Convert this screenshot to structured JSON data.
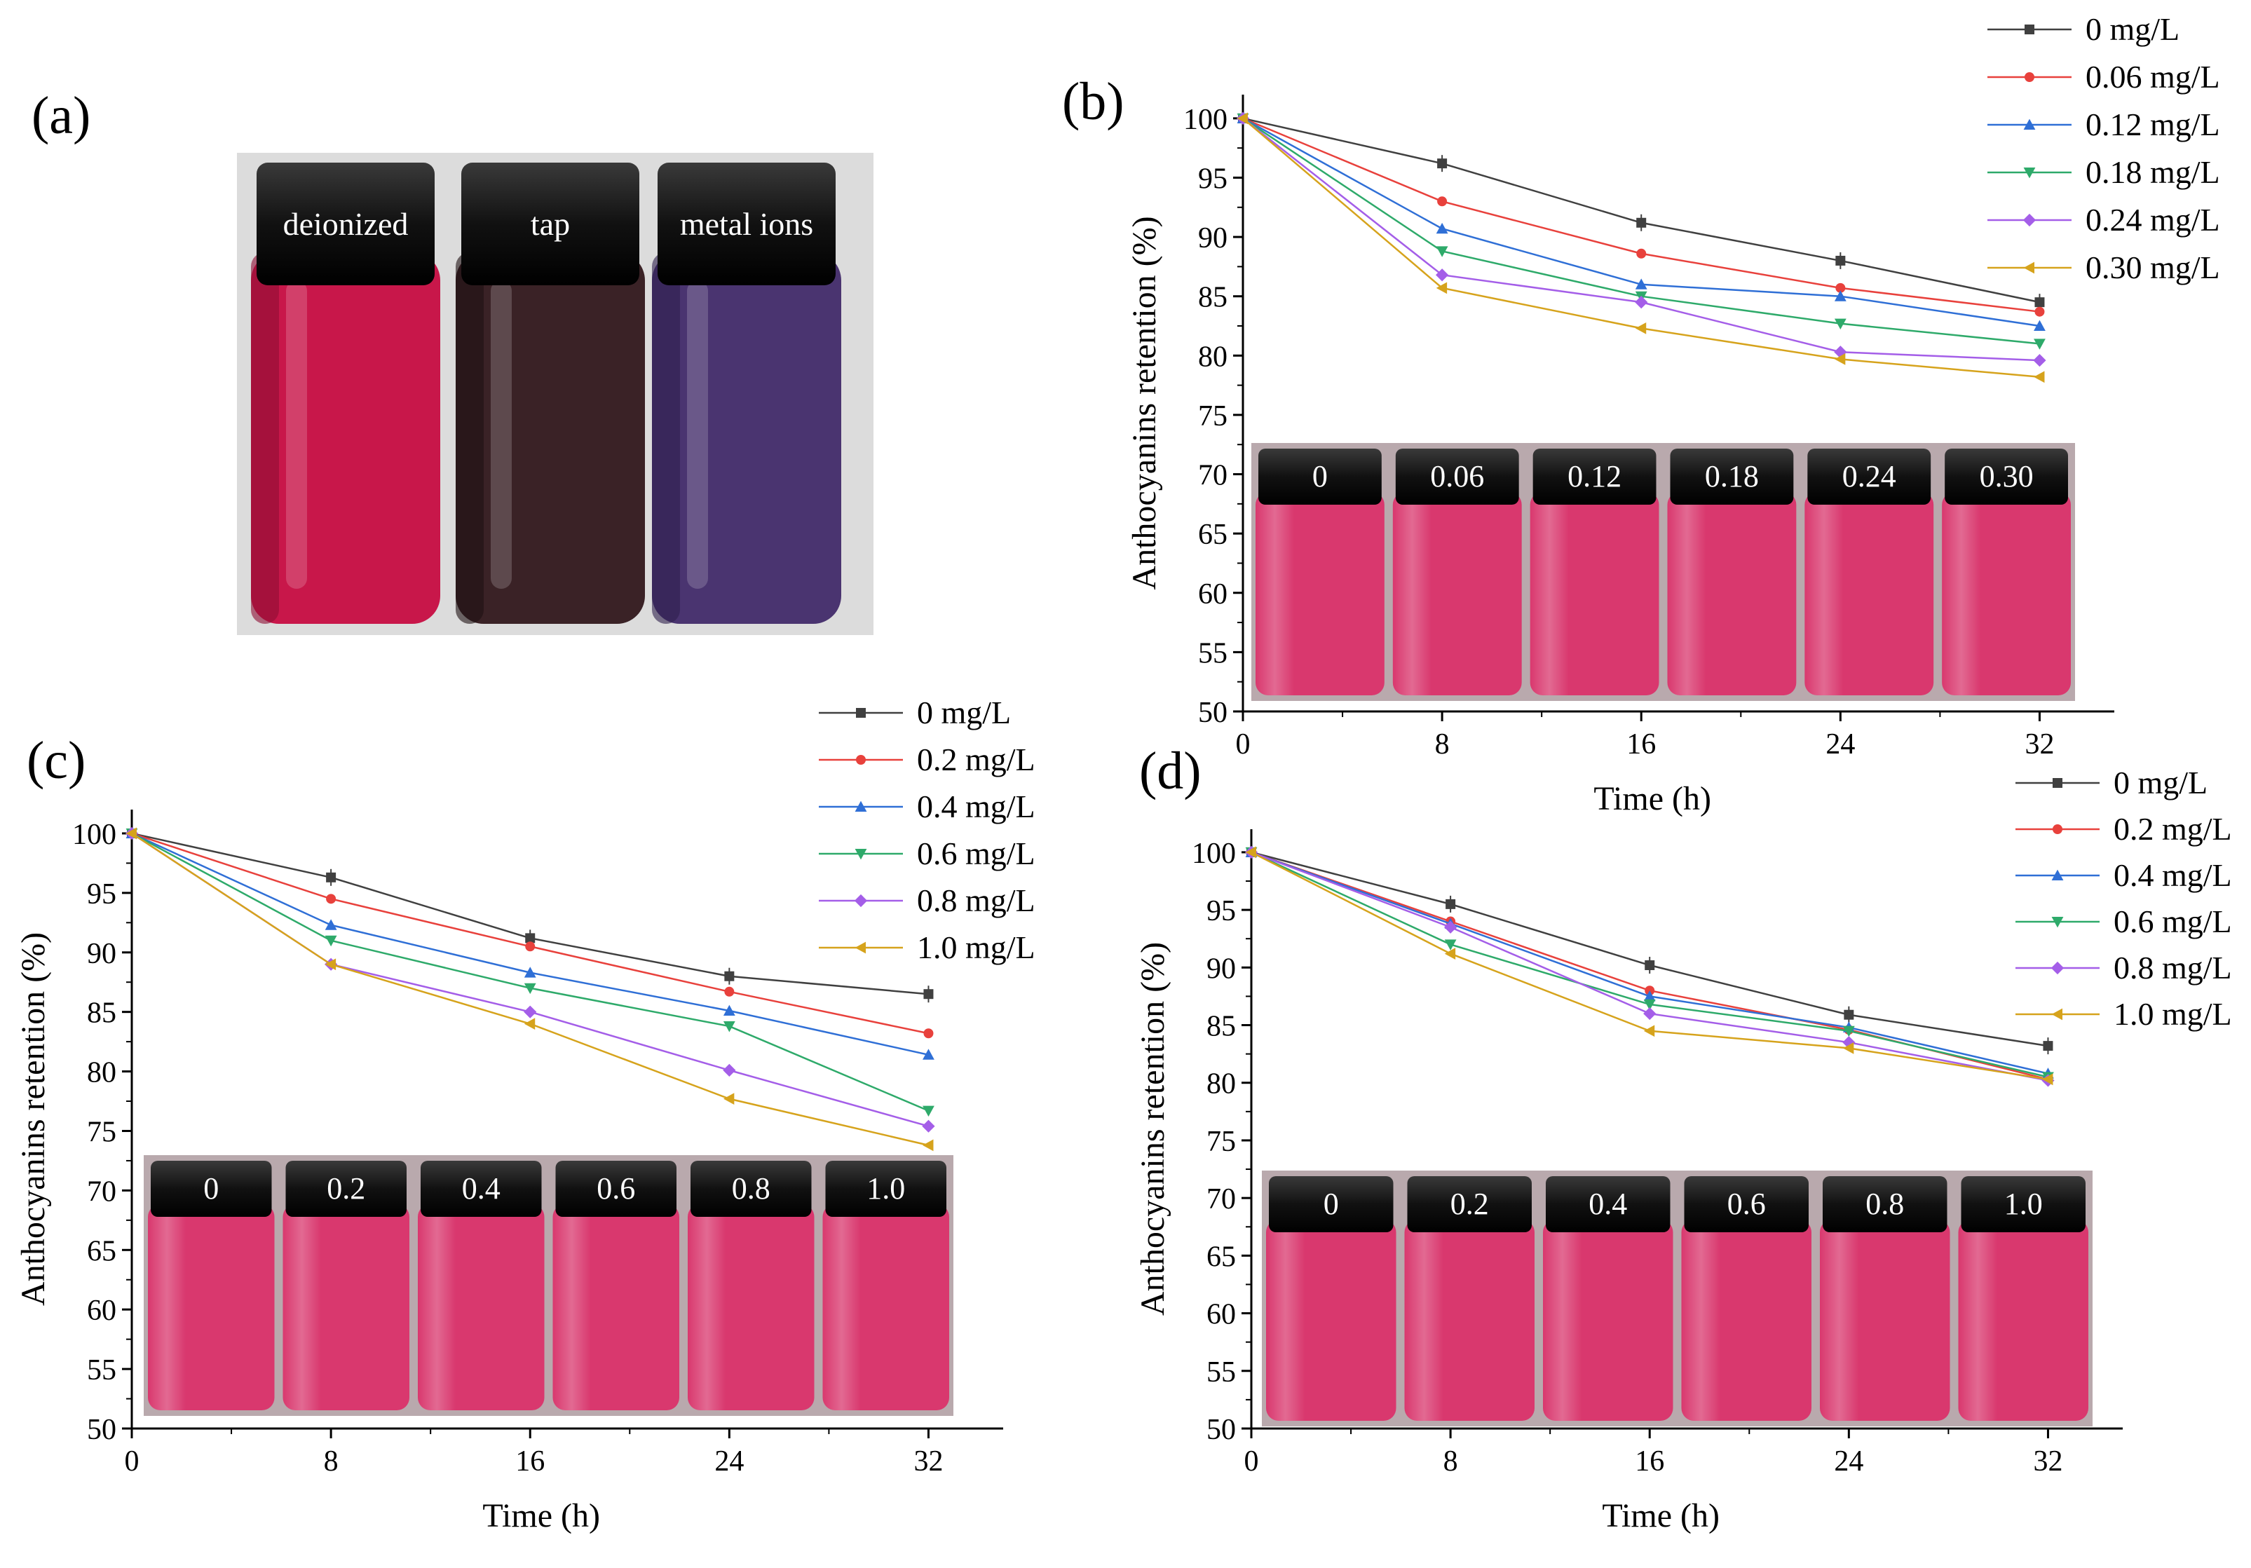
{
  "panel_a": {
    "letter": "(a)",
    "vials": [
      {
        "label": "deionized",
        "liquid": "#c8174a",
        "liquid_dark": "#8e0d33"
      },
      {
        "label": "tap",
        "liquid": "#3a2226",
        "liquid_dark": "#1e1012"
      },
      {
        "label": "metal ions",
        "liquid": "#4a3470",
        "liquid_dark": "#2e1f4c"
      }
    ]
  },
  "chart_data": [
    {
      "panel": "(b)",
      "type": "line",
      "xlabel": "Time (h)",
      "ylabel": "Anthocyanins retention (%)",
      "x": [
        0,
        8,
        16,
        24,
        32
      ],
      "xlim": [
        0,
        35
      ],
      "ylim": [
        50,
        102
      ],
      "xticks": [
        0,
        8,
        16,
        24,
        32
      ],
      "yticks": [
        50,
        55,
        60,
        65,
        70,
        75,
        80,
        85,
        90,
        95,
        100
      ],
      "legend_position": "top-right",
      "series": [
        {
          "name": "0 mg/L",
          "color": "#404040",
          "marker": "square",
          "values": [
            100,
            96.2,
            91.2,
            88.0,
            84.5
          ]
        },
        {
          "name": "0.06 mg/L",
          "color": "#e8413c",
          "marker": "circle",
          "values": [
            100,
            93.0,
            88.6,
            85.7,
            83.7
          ]
        },
        {
          "name": "0.12 mg/L",
          "color": "#2f6fd6",
          "marker": "triangle-up",
          "values": [
            100,
            90.7,
            86.0,
            85.0,
            82.5
          ]
        },
        {
          "name": "0.18 mg/L",
          "color": "#2eaa6a",
          "marker": "triangle-down",
          "values": [
            100,
            88.8,
            85.0,
            82.7,
            81.0
          ]
        },
        {
          "name": "0.24 mg/L",
          "color": "#a45ee8",
          "marker": "diamond",
          "values": [
            100,
            86.8,
            84.5,
            80.3,
            79.6
          ]
        },
        {
          "name": "0.30 mg/L",
          "color": "#d6a31c",
          "marker": "triangle-left",
          "values": [
            100,
            85.7,
            82.3,
            79.7,
            78.2
          ]
        }
      ],
      "vial_photo_labels": [
        "0",
        "0.06",
        "0.12",
        "0.18",
        "0.24",
        "0.30"
      ]
    },
    {
      "panel": "(c)",
      "type": "line",
      "xlabel": "Time (h)",
      "ylabel": "Anthocyanins retention (%)",
      "x": [
        0,
        8,
        16,
        24,
        32
      ],
      "xlim": [
        0,
        35
      ],
      "ylim": [
        50,
        102
      ],
      "xticks": [
        0,
        8,
        16,
        24,
        32
      ],
      "yticks": [
        50,
        55,
        60,
        65,
        70,
        75,
        80,
        85,
        90,
        95,
        100
      ],
      "legend_position": "top-right",
      "series": [
        {
          "name": "0 mg/L",
          "color": "#404040",
          "marker": "square",
          "values": [
            100,
            96.3,
            91.2,
            88.0,
            86.5
          ]
        },
        {
          "name": "0.2 mg/L",
          "color": "#e8413c",
          "marker": "circle",
          "values": [
            100,
            94.5,
            90.5,
            86.7,
            83.2
          ]
        },
        {
          "name": "0.4 mg/L",
          "color": "#2f6fd6",
          "marker": "triangle-up",
          "values": [
            100,
            92.3,
            88.3,
            85.1,
            81.4
          ]
        },
        {
          "name": "0.6 mg/L",
          "color": "#2eaa6a",
          "marker": "triangle-down",
          "values": [
            100,
            91.0,
            87.0,
            83.8,
            76.7
          ]
        },
        {
          "name": "0.8 mg/L",
          "color": "#a45ee8",
          "marker": "diamond",
          "values": [
            100,
            89.0,
            85.0,
            80.1,
            75.4
          ]
        },
        {
          "name": "1.0 mg/L",
          "color": "#d6a31c",
          "marker": "triangle-left",
          "values": [
            100,
            89.0,
            84.0,
            77.7,
            73.8
          ]
        }
      ],
      "vial_photo_labels": [
        "0",
        "0.2",
        "0.4",
        "0.6",
        "0.8",
        "1.0"
      ]
    },
    {
      "panel": "(d)",
      "type": "line",
      "xlabel": "Time (h)",
      "ylabel": "Anthocyanins retention (%)",
      "x": [
        0,
        8,
        16,
        24,
        32
      ],
      "xlim": [
        0,
        35
      ],
      "ylim": [
        50,
        102
      ],
      "xticks": [
        0,
        8,
        16,
        24,
        32
      ],
      "yticks": [
        50,
        55,
        60,
        65,
        70,
        75,
        80,
        85,
        90,
        95,
        100
      ],
      "legend_position": "top-right",
      "series": [
        {
          "name": "0 mg/L",
          "color": "#404040",
          "marker": "square",
          "values": [
            100,
            95.5,
            90.2,
            85.9,
            83.2
          ]
        },
        {
          "name": "0.2 mg/L",
          "color": "#e8413c",
          "marker": "circle",
          "values": [
            100,
            94.0,
            88.0,
            84.6,
            80.3
          ]
        },
        {
          "name": "0.4 mg/L",
          "color": "#2f6fd6",
          "marker": "triangle-up",
          "values": [
            100,
            93.8,
            87.5,
            84.8,
            80.8
          ]
        },
        {
          "name": "0.6 mg/L",
          "color": "#2eaa6a",
          "marker": "triangle-down",
          "values": [
            100,
            92.0,
            86.8,
            84.5,
            80.5
          ]
        },
        {
          "name": "0.8 mg/L",
          "color": "#a45ee8",
          "marker": "diamond",
          "values": [
            100,
            93.5,
            86.0,
            83.5,
            80.2
          ]
        },
        {
          "name": "1.0 mg/L",
          "color": "#d6a31c",
          "marker": "triangle-left",
          "values": [
            100,
            91.2,
            84.5,
            83.0,
            80.3
          ]
        }
      ],
      "vial_photo_labels": [
        "0",
        "0.2",
        "0.4",
        "0.6",
        "0.8",
        "1.0"
      ]
    }
  ]
}
